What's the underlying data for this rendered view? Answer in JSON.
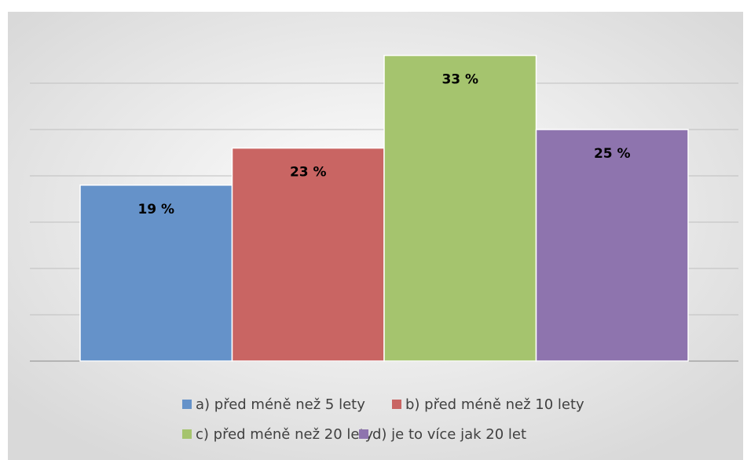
{
  "chart_data": {
    "type": "bar",
    "series": [
      {
        "name": "a) před méně než 5 lety",
        "color": "#6592c9",
        "values": [
          19
        ],
        "value_labels": [
          "19 %"
        ]
      },
      {
        "name": "b) před méně než 10 lety",
        "color": "#c96563",
        "values": [
          23
        ],
        "value_labels": [
          "23 %"
        ]
      },
      {
        "name": "c) před méně než 20 lety",
        "color": "#a5c46e",
        "values": [
          33
        ],
        "value_labels": [
          "33 %"
        ]
      },
      {
        "name": "d) je to více jak 20 let",
        "color": "#8e74ae",
        "values": [
          25
        ],
        "value_labels": [
          "25 %"
        ]
      }
    ],
    "ylim": [
      0,
      35
    ],
    "yticks": [
      0,
      5,
      10,
      15,
      20,
      25,
      30
    ],
    "grid": true
  }
}
